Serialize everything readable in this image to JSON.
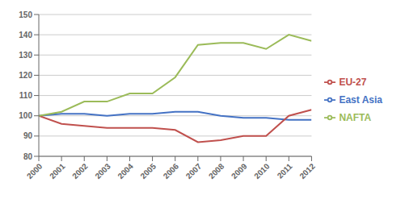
{
  "chart_data": {
    "type": "line",
    "x": [
      2000,
      2001,
      2002,
      2003,
      2004,
      2005,
      2006,
      2007,
      2008,
      2009,
      2010,
      2011,
      2012
    ],
    "series": [
      {
        "name": "East Asia",
        "color": "#4472C4",
        "values": [
          100,
          101,
          101,
          100,
          101,
          101,
          102,
          102,
          100,
          99,
          99,
          98,
          98
        ]
      },
      {
        "name": "EU-27",
        "color": "#C0504D",
        "values": [
          100,
          96,
          95,
          94,
          94,
          94,
          93,
          87,
          88,
          90,
          90,
          100,
          103
        ]
      },
      {
        "name": "NAFTA",
        "color": "#9BBB59",
        "values": [
          100,
          102,
          107,
          107,
          111,
          111,
          119,
          135,
          136,
          136,
          133,
          140,
          137
        ]
      }
    ],
    "xlim": [
      2000,
      2012
    ],
    "xticks": [
      2000,
      2001,
      2002,
      2003,
      2004,
      2005,
      2006,
      2007,
      2008,
      2009,
      2010,
      2011,
      2012
    ],
    "ylim": [
      80,
      150
    ],
    "yticks": [
      80,
      90,
      100,
      110,
      120,
      130,
      140,
      150
    ],
    "grid": true,
    "legend": "right"
  }
}
